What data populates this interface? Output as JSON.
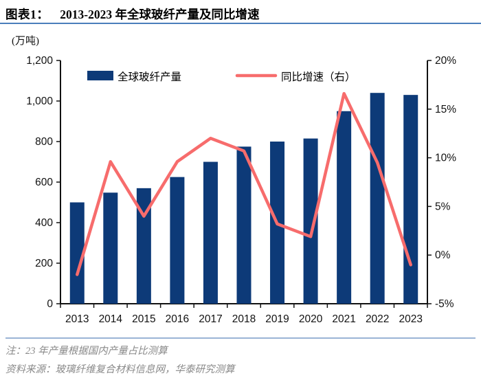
{
  "header": {
    "label": "图表1：",
    "title": "2013-2023 年全球玻纤产量及同比增速"
  },
  "chart_data": {
    "type": "bar",
    "title": "2013-2023 年全球玻纤产量及同比增速",
    "unit_left": "(万吨)",
    "categories": [
      "2013",
      "2014",
      "2015",
      "2016",
      "2017",
      "2018",
      "2019",
      "2020",
      "2021",
      "2022",
      "2023"
    ],
    "series": [
      {
        "name": "全球玻纤产量",
        "type": "bar",
        "axis": "left",
        "color": "#0d3a78",
        "values": [
          500,
          548,
          570,
          625,
          700,
          775,
          800,
          815,
          950,
          1040,
          1030
        ]
      },
      {
        "name": "同比增速（右）",
        "type": "line",
        "axis": "right",
        "color": "#f76c6c",
        "values": [
          -2.0,
          9.6,
          4.0,
          9.6,
          12.0,
          10.7,
          3.2,
          1.9,
          16.6,
          9.5,
          -1.0
        ]
      }
    ],
    "left_axis": {
      "min": 0,
      "max": 1200,
      "tick_values": [
        0,
        200,
        400,
        600,
        800,
        1000,
        1200
      ],
      "tick_labels": [
        "0",
        "200",
        "400",
        "600",
        "800",
        "1,000",
        "1,200"
      ]
    },
    "right_axis": {
      "min": -5,
      "max": 20,
      "tick_values": [
        -5,
        0,
        5,
        10,
        15,
        20
      ],
      "tick_labels": [
        "-5%",
        "0%",
        "5%",
        "10%",
        "15%",
        "20%"
      ]
    },
    "legend_position": "top-inside",
    "grid": false,
    "axis_color": "#111111",
    "text_color": "#111111"
  },
  "footer": {
    "note": "注：23 年产量根据国内产量占比测算",
    "source": "资料来源：玻璃纤维复合材料信息网，华泰研究测算"
  }
}
